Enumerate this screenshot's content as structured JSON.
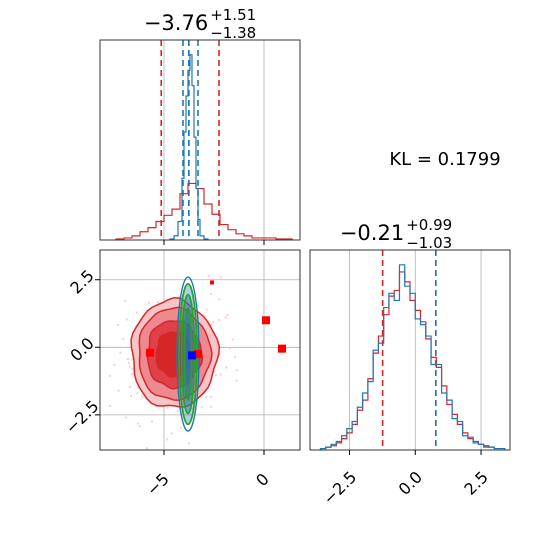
{
  "annotations": {
    "kl": "KL = 0.1799"
  },
  "colors": {
    "reference": "#d62728",
    "model": "#1f77b4",
    "contour_model": "#2ca02c",
    "marker_model": "#0000ff",
    "marker_ref": "#ff0000"
  },
  "chart_data": [
    {
      "type": "histogram",
      "panel": "top-left",
      "title": {
        "main": "−3.76",
        "sup": "+1.51",
        "sub": "−1.38"
      },
      "xlim": [
        -8.2,
        1.8
      ],
      "quantiles_reference": [
        -5.14,
        -3.76,
        -2.25
      ],
      "quantiles_model": [
        -4.05,
        -3.76,
        -3.3
      ],
      "grid_x": [
        -5,
        0
      ],
      "series": [
        {
          "name": "reference",
          "color": "#d62728",
          "edges": [
            -7.4,
            -7.0,
            -6.6,
            -6.2,
            -5.8,
            -5.4,
            -5.0,
            -4.6,
            -4.2,
            -3.8,
            -3.4,
            -3.0,
            -2.6,
            -2.2,
            -1.8,
            -1.4,
            -1.0,
            -0.6,
            -0.2,
            0.2,
            0.6,
            1.0,
            1.4
          ],
          "counts": [
            1,
            2,
            4,
            8,
            12,
            18,
            24,
            30,
            45,
            55,
            50,
            35,
            25,
            15,
            10,
            6,
            4,
            2,
            2,
            2,
            1,
            1
          ]
        },
        {
          "name": "model",
          "color": "#1f77b4",
          "edges": [
            -4.7,
            -4.5,
            -4.3,
            -4.1,
            -4.0,
            -3.9,
            -3.8,
            -3.7,
            -3.6,
            -3.5,
            -3.4,
            -3.3,
            -3.2,
            -3.0,
            -2.8
          ],
          "counts": [
            1,
            4,
            18,
            60,
            105,
            140,
            165,
            180,
            150,
            100,
            50,
            20,
            4,
            1
          ]
        }
      ]
    },
    {
      "type": "contour",
      "panel": "bottom-left",
      "xlim": [
        -8.2,
        1.8
      ],
      "ylim": [
        -3.8,
        3.6
      ],
      "xticks": [
        "−5",
        "0"
      ],
      "yticks": [
        "−2.5",
        "0.0",
        "2.5"
      ],
      "xtick_values": [
        -5,
        0
      ],
      "ytick_values": [
        -2.5,
        0,
        2.5
      ],
      "reference_center": [
        -4.5,
        -0.25
      ],
      "model_center": [
        -3.8,
        -0.25
      ],
      "markers_reference": [
        [
          -5.7,
          -0.2
        ],
        [
          -3.3,
          -0.25
        ],
        [
          0.1,
          1.0
        ],
        [
          0.9,
          -0.05
        ],
        [
          -2.6,
          2.4
        ]
      ],
      "marker_model": [
        -3.6,
        -0.3
      ]
    },
    {
      "type": "histogram",
      "panel": "bottom-right",
      "title": {
        "main": "−0.21",
        "sup": "+0.99",
        "sub": "−1.03"
      },
      "xlim": [
        -4.0,
        3.6
      ],
      "xticks": [
        "−2.5",
        "0.0",
        "2.5"
      ],
      "xtick_values": [
        -2.5,
        0,
        2.5
      ],
      "quantiles_reference": [
        -1.24,
        0.78
      ],
      "quantiles_model": [
        0.78
      ],
      "series": [
        {
          "name": "reference",
          "color": "#d62728",
          "edges": [
            -3.6,
            -3.4,
            -3.2,
            -3.0,
            -2.8,
            -2.6,
            -2.4,
            -2.2,
            -2.0,
            -1.8,
            -1.6,
            -1.4,
            -1.2,
            -1.0,
            -0.8,
            -0.6,
            -0.4,
            -0.2,
            0.0,
            0.2,
            0.4,
            0.6,
            0.8,
            1.0,
            1.2,
            1.4,
            1.6,
            1.8,
            2.0,
            2.2,
            2.4,
            2.6,
            2.8,
            3.0,
            3.2,
            3.4
          ],
          "counts": [
            1,
            2,
            3,
            5,
            8,
            12,
            18,
            28,
            35,
            50,
            68,
            80,
            95,
            108,
            112,
            125,
            118,
            105,
            98,
            90,
            78,
            65,
            58,
            45,
            32,
            25,
            18,
            12,
            8,
            6,
            4,
            3,
            2,
            1,
            1
          ]
        },
        {
          "name": "model",
          "color": "#1f77b4",
          "edges": [
            -3.6,
            -3.4,
            -3.2,
            -3.0,
            -2.8,
            -2.6,
            -2.4,
            -2.2,
            -2.0,
            -1.8,
            -1.6,
            -1.4,
            -1.2,
            -1.0,
            -0.8,
            -0.6,
            -0.4,
            -0.2,
            0.0,
            0.2,
            0.4,
            0.6,
            0.8,
            1.0,
            1.2,
            1.4,
            1.6,
            1.8,
            2.0,
            2.2,
            2.4,
            2.6,
            2.8,
            3.0,
            3.2,
            3.4
          ],
          "counts": [
            1,
            2,
            4,
            6,
            10,
            15,
            20,
            30,
            40,
            48,
            70,
            75,
            100,
            110,
            105,
            130,
            115,
            110,
            92,
            88,
            80,
            60,
            60,
            40,
            35,
            22,
            20,
            10,
            9,
            5,
            4,
            2,
            2,
            1,
            1
          ]
        }
      ]
    }
  ]
}
